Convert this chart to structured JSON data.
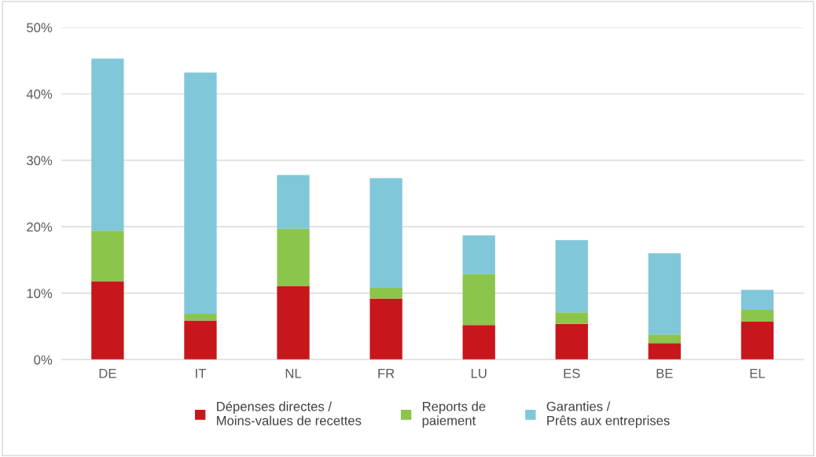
{
  "chart_data": {
    "type": "bar",
    "stacked": true,
    "categories": [
      "DE",
      "IT",
      "NL",
      "FR",
      "LU",
      "ES",
      "BE",
      "EL"
    ],
    "series": [
      {
        "name": "Dépenses directes /\nMoins-values de recettes",
        "color": "#c8161d",
        "values": [
          11.8,
          5.9,
          11.1,
          9.2,
          5.2,
          5.4,
          2.5,
          5.7
        ]
      },
      {
        "name": "Reports de\npaiement",
        "color": "#8bc54b",
        "values": [
          7.6,
          1.0,
          8.6,
          1.6,
          7.7,
          1.7,
          1.3,
          1.8
        ]
      },
      {
        "name": "Garanties /\nPrêts aux entreprises",
        "color": "#80c7d9",
        "values": [
          25.9,
          36.3,
          8.1,
          16.5,
          5.8,
          10.9,
          12.2,
          3.0
        ]
      }
    ],
    "ylim": [
      0,
      50
    ],
    "yticks": [
      {
        "value": 0,
        "label": "0%"
      },
      {
        "value": 10,
        "label": "10%"
      },
      {
        "value": 20,
        "label": "20%"
      },
      {
        "value": 30,
        "label": "30%"
      },
      {
        "value": 40,
        "label": "40%"
      },
      {
        "value": 50,
        "label": "50%"
      }
    ],
    "grid": "y",
    "legend": "bottom"
  }
}
